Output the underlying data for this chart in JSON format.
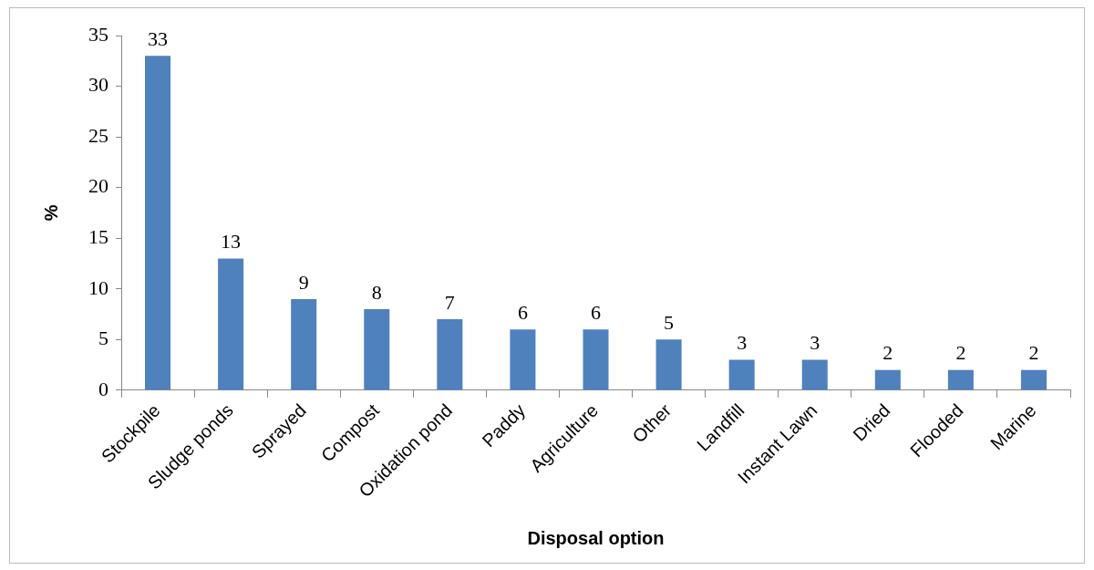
{
  "chart_data": {
    "type": "bar",
    "xlabel": "Disposal option",
    "ylabel": "%",
    "categories": [
      "Stockpile",
      "Sludge ponds",
      "Sprayed",
      "Compost",
      "Oxidation pond",
      "Paddy",
      "Agriculture",
      "Other",
      "Landfill",
      "Instant Lawn",
      "Dried",
      "Flooded",
      "Marine"
    ],
    "values": [
      33,
      13,
      9,
      8,
      7,
      6,
      6,
      5,
      3,
      3,
      2,
      2,
      2
    ],
    "color": "#4f81bd",
    "ylim": [
      0,
      35
    ],
    "yticks": [
      0,
      5,
      10,
      15,
      20,
      25,
      30,
      35
    ],
    "grid": false,
    "legend": false,
    "data_labels": true
  }
}
